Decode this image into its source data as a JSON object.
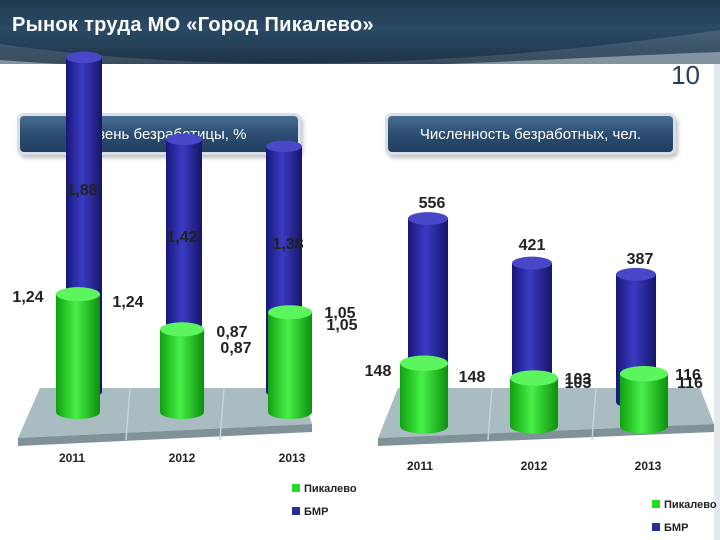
{
  "slide": {
    "title": "Рынок труда МО «Город Пикалево»",
    "number": "10"
  },
  "colors": {
    "header": "#20394f",
    "pikalevo": "#22dd22",
    "bmr": "#2a2aa0",
    "floor": "#a9bcc2"
  },
  "chart_data": [
    {
      "type": "bar",
      "title": "Уровень безработицы, %",
      "categories": [
        "2011",
        "2012",
        "2013"
      ],
      "series": [
        {
          "name": "Пикалево",
          "values": [
            1.24,
            0.87,
            1.05
          ],
          "labels": [
            "1,24",
            "0,87",
            "1,05"
          ]
        },
        {
          "name": "БМР",
          "values": [
            1.88,
            1.42,
            1.38
          ],
          "labels": [
            "1,88",
            "1,42",
            "1,38"
          ]
        }
      ],
      "legend": [
        "Пикалево",
        "БМР"
      ],
      "legend_position": "bottom-right"
    },
    {
      "type": "bar",
      "title": "Численность безработных, чел.",
      "categories": [
        "2011",
        "2012",
        "2013"
      ],
      "series": [
        {
          "name": "Пикалево",
          "values": [
            148,
            103,
            116
          ],
          "labels": [
            "148",
            "103",
            "116"
          ]
        },
        {
          "name": "БМР",
          "values": [
            556,
            421,
            387
          ],
          "labels": [
            "556",
            "421",
            "387"
          ]
        }
      ],
      "legend": [
        "Пикалево",
        "БМР"
      ],
      "legend_position": "bottom-right"
    }
  ]
}
